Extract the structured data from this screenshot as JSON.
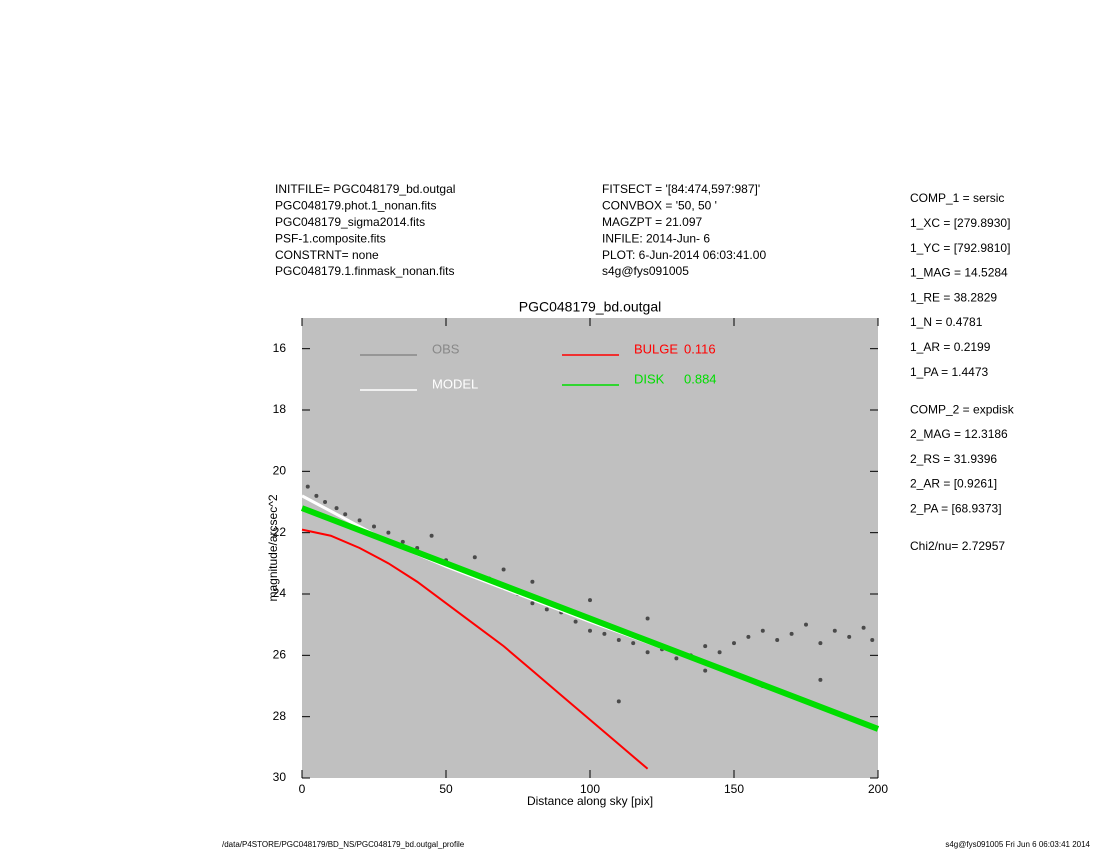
{
  "header_left": [
    "INITFILE= PGC048179_bd.outgal",
    "PGC048179.phot.1_nonan.fits",
    "PGC048179_sigma2014.fits",
    "PSF-1.composite.fits",
    "CONSTRNT= none",
    "PGC048179.1.finmask_nonan.fits"
  ],
  "header_mid": [
    "FITSECT = '[84:474,597:987]'",
    "CONVBOX = '50, 50  '",
    "MAGZPT  =              21.097",
    "INFILE: 2014-Jun- 6",
    "PLOT:  6-Jun-2014 06:03:41.00",
    "s4g@fys091005"
  ],
  "params": [
    "COMP_1  = sersic",
    "1_XC    = [279.8930]",
    "1_YC    = [792.9810]",
    "1_MAG   = 14.5284",
    "1_RE    = 38.2829",
    "1_N     = 0.4781",
    "1_AR    = 0.2199",
    "1_PA    = 1.4473",
    "COMP_2  = expdisk",
    "2_MAG   = 12.3186",
    "2_RS    = 31.9396",
    "2_AR    = [0.9261]",
    "2_PA    = [68.9373]",
    "Chi2/nu=     2.72957"
  ],
  "footer_left": "/data/P4STORE/PGC048179/BD_NS/PGC048179_bd.outgal_profile",
  "footer_right": "s4g@fys091005  Fri Jun  6 06:03:41 2014",
  "chart_data": {
    "type": "scatter",
    "title": "PGC048179_bd.outgal",
    "xlabel": "Distance along sky [pix]",
    "ylabel": "magnitude/arcsec^2",
    "xlim": [
      0,
      200
    ],
    "ylim": [
      30,
      15
    ],
    "xticks": [
      0,
      50,
      100,
      150,
      200
    ],
    "yticks": [
      16,
      18,
      20,
      22,
      24,
      26,
      28,
      30
    ],
    "series": [
      {
        "name": "OBS",
        "color": "#4a4a4a",
        "marker": "point",
        "x": [
          2,
          5,
          8,
          12,
          15,
          20,
          25,
          30,
          35,
          40,
          45,
          50,
          55,
          60,
          65,
          70,
          75,
          80,
          85,
          90,
          95,
          100,
          105,
          110,
          115,
          120,
          125,
          130,
          135,
          140,
          145,
          150,
          155,
          160,
          165,
          170,
          175,
          180,
          185,
          190,
          195,
          198,
          60,
          80,
          100,
          120,
          140,
          160,
          180,
          45,
          70,
          110
        ],
        "values": [
          20.5,
          20.8,
          21.0,
          21.2,
          21.4,
          21.6,
          21.8,
          22.0,
          22.3,
          22.5,
          22.8,
          22.9,
          23.2,
          23.4,
          23.5,
          23.8,
          24.0,
          24.3,
          24.5,
          24.6,
          24.9,
          25.2,
          25.3,
          25.5,
          25.6,
          25.9,
          25.8,
          26.1,
          26.0,
          25.7,
          25.9,
          25.6,
          25.4,
          25.2,
          25.5,
          25.3,
          25.0,
          25.6,
          25.2,
          25.4,
          25.1,
          25.5,
          22.8,
          23.6,
          24.2,
          24.8,
          26.5,
          27.0,
          26.8,
          22.1,
          23.2,
          27.5
        ]
      },
      {
        "name": "MODEL",
        "color": "#ffffff",
        "marker": "line",
        "x": [
          0,
          10,
          20,
          30,
          40,
          50,
          75,
          100,
          150,
          200
        ],
        "values": [
          20.8,
          21.3,
          21.8,
          22.3,
          22.7,
          23.1,
          24.0,
          24.9,
          26.6,
          28.4
        ]
      },
      {
        "name": "BULGE",
        "fraction": 0.116,
        "color": "#ff0000",
        "marker": "line",
        "x": [
          0,
          10,
          20,
          30,
          40,
          50,
          60,
          70,
          80,
          90,
          100,
          110,
          120
        ],
        "values": [
          21.9,
          22.1,
          22.5,
          23.0,
          23.6,
          24.3,
          25.0,
          25.7,
          26.5,
          27.3,
          28.1,
          28.9,
          29.7
        ]
      },
      {
        "name": "DISK",
        "fraction": 0.884,
        "color": "#00dd00",
        "marker": "line",
        "x": [
          0,
          50,
          100,
          150,
          200
        ],
        "values": [
          21.2,
          23.0,
          24.8,
          26.6,
          28.4
        ]
      }
    ]
  }
}
